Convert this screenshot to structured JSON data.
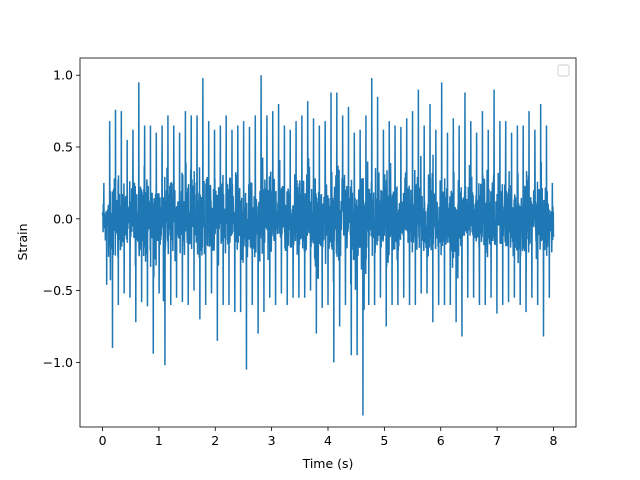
{
  "chart_data": {
    "type": "line",
    "title": "",
    "xlabel": "Time (s)",
    "ylabel": "Strain",
    "xlim": [
      -0.4,
      8.4
    ],
    "ylim": [
      -1.45,
      1.12
    ],
    "xticks": [
      0,
      1,
      2,
      3,
      4,
      5,
      6,
      7,
      8
    ],
    "xtick_labels": [
      "0",
      "1",
      "2",
      "3",
      "4",
      "5",
      "6",
      "7",
      "8"
    ],
    "yticks": [
      -1.0,
      -0.5,
      0.0,
      0.5,
      1.0
    ],
    "ytick_labels": [
      "−1.0",
      "−0.5",
      "0.0",
      "0.5",
      "1.0"
    ],
    "grid": false,
    "legend": {
      "placement": "upper-right",
      "entries": []
    },
    "series": [
      {
        "color": "#1f77b4",
        "x_range": [
          0,
          8
        ],
        "envelope_min": [
          -0.46,
          -0.9,
          -0.6,
          -0.52,
          -0.55,
          -0.72,
          -0.58,
          -0.61,
          -0.94,
          -0.52,
          -1.02,
          -0.6,
          -0.55,
          -0.58,
          -0.6,
          -0.5,
          -0.7,
          -0.6,
          -0.52,
          -0.85,
          -0.6,
          -0.6,
          -0.65,
          -1.05,
          -0.6,
          -0.8,
          -0.65,
          -0.55,
          -0.6,
          -0.52,
          -0.6,
          -0.55,
          -0.55,
          -0.55,
          -0.5,
          -0.8,
          -0.62,
          -0.6,
          -1.0,
          -0.75,
          -0.6,
          -0.95,
          -0.95,
          -1.37,
          -0.6,
          -0.6,
          -0.55,
          -0.75,
          -0.6,
          -0.6,
          -0.55,
          -0.6,
          -0.6,
          -0.52,
          -0.72,
          -0.6,
          -0.6,
          -0.6,
          -0.72,
          -0.82,
          -0.55,
          -0.55,
          -0.6,
          -0.6,
          -0.55,
          -0.66,
          -0.6,
          -0.58,
          -0.55,
          -0.6,
          -0.65,
          -0.55,
          -0.6,
          -0.82,
          -0.55
        ],
        "envelope_max": [
          0.25,
          0.68,
          0.76,
          0.75,
          0.55,
          0.62,
          0.95,
          0.65,
          0.6,
          0.65,
          0.72,
          0.65,
          0.6,
          0.75,
          0.72,
          0.72,
          0.98,
          0.68,
          0.62,
          0.65,
          0.72,
          0.62,
          0.65,
          0.68,
          0.64,
          0.72,
          1.0,
          0.72,
          0.75,
          0.8,
          0.65,
          0.62,
          0.68,
          0.72,
          0.82,
          0.7,
          0.65,
          0.68,
          0.88,
          0.72,
          0.78,
          0.6,
          0.62,
          0.72,
          0.98,
          0.85,
          0.62,
          0.68,
          0.65,
          0.64,
          0.7,
          0.75,
          0.9,
          0.65,
          0.8,
          0.62,
          0.95,
          0.6,
          0.7,
          0.65,
          0.88,
          0.68,
          0.6,
          0.75,
          0.62,
          0.9,
          0.68,
          0.68,
          0.6,
          0.65,
          0.75,
          0.62,
          0.8,
          0.65,
          0.25
        ]
      }
    ]
  }
}
